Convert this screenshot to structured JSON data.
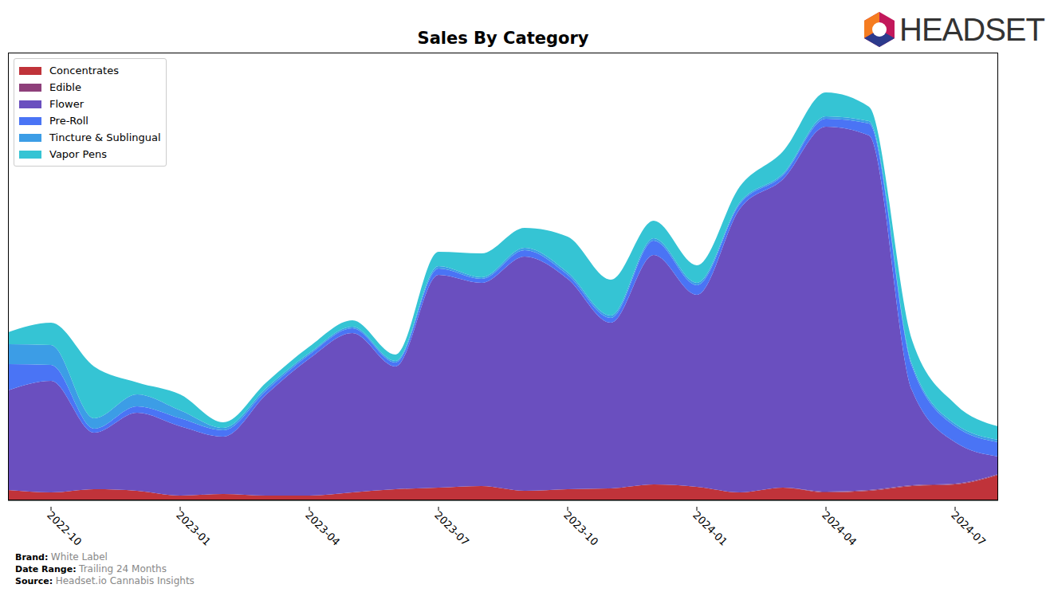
{
  "chart_data": {
    "type": "area",
    "title": "Sales By Category",
    "stacked": true,
    "legend": "upper left",
    "tick_labels": "x",
    "categories": [
      null,
      "2022-10",
      null,
      null,
      "2023-01",
      null,
      null,
      "2023-04",
      null,
      null,
      "2023-07",
      null,
      null,
      "2023-10",
      null,
      null,
      "2024-01",
      null,
      null,
      "2024-04",
      null,
      null,
      "2024-07",
      null
    ],
    "ylim": [
      0,
      562
    ],
    "yticks": [],
    "series": [
      {
        "name": "Concentrates",
        "color": "#c0333a",
        "values": [
          13,
          10,
          14,
          12,
          6,
          8,
          6,
          6,
          10,
          14,
          16,
          18,
          12,
          14,
          15,
          20,
          17,
          10,
          16,
          10,
          12,
          18,
          20,
          32
        ]
      },
      {
        "name": "Edible",
        "color": "#8e3f7a",
        "values": [
          0,
          0,
          0,
          0,
          0,
          0,
          0,
          0,
          0,
          0,
          0,
          0,
          0,
          0,
          0,
          0,
          0,
          0,
          0,
          1,
          1,
          1,
          1,
          1
        ]
      },
      {
        "name": "Flower",
        "color": "#6a4fbf",
        "values": [
          125,
          140,
          71,
          98,
          87,
          72,
          127,
          172,
          200,
          154,
          267,
          255,
          294,
          264,
          208,
          288,
          241,
          356,
          387,
          458,
          445,
          119,
          52,
          22
        ]
      },
      {
        "name": "Pre-Roll",
        "color": "#4a74f5",
        "values": [
          33,
          20,
          5,
          8,
          10,
          8,
          5,
          5,
          6,
          5,
          8,
          5,
          8,
          5,
          6,
          18,
          12,
          6,
          5,
          10,
          15,
          30,
          20,
          18
        ]
      },
      {
        "name": "Tincture & Sublingual",
        "color": "#3c9de6",
        "values": [
          25,
          25,
          13,
          15,
          10,
          3,
          3,
          2,
          2,
          2,
          3,
          2,
          3,
          3,
          3,
          3,
          3,
          2,
          2,
          3,
          3,
          3,
          3,
          3
        ]
      },
      {
        "name": "Vapor Pens",
        "color": "#35c4d4",
        "values": [
          15,
          28,
          65,
          15,
          20,
          7,
          7,
          8,
          8,
          8,
          18,
          30,
          25,
          45,
          45,
          22,
          22,
          20,
          28,
          30,
          18,
          30,
          25,
          17
        ]
      }
    ]
  },
  "header": {
    "logo": "HEADSET"
  },
  "footer": [
    {
      "label": "Brand:",
      "value": "White Label"
    },
    {
      "label": "Date Range:",
      "value": "Trailing 24 Months"
    },
    {
      "label": "Source:",
      "value": "Headset.io Cannabis Insights"
    }
  ]
}
